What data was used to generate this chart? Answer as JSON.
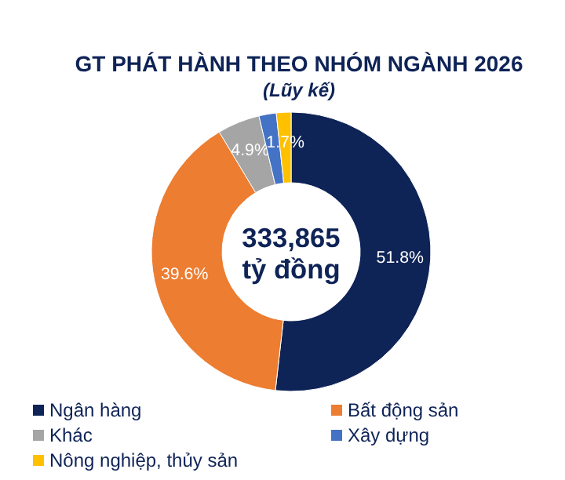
{
  "chart_data": {
    "type": "donut",
    "title": "GT PHÁT HÀNH THEO NHÓM NGÀNH 2026",
    "subtitle": "(Lũy kế)",
    "categories": [
      "Ngân hàng",
      "Bất động sản",
      "Khác",
      "Xây dựng",
      "Nông nghiệp, thủy sản"
    ],
    "values": [
      51.8,
      39.6,
      4.9,
      2.0,
      1.7
    ],
    "colors": [
      "#0e2356",
      "#ed7d31",
      "#a5a5a5",
      "#4472c4",
      "#ffc000"
    ],
    "value_labels": [
      "51.8%",
      "39.6%",
      "4.9%",
      null,
      "1.7%"
    ],
    "annotations": [
      "333,865",
      "tỷ đồng"
    ],
    "legend": "bottom"
  }
}
